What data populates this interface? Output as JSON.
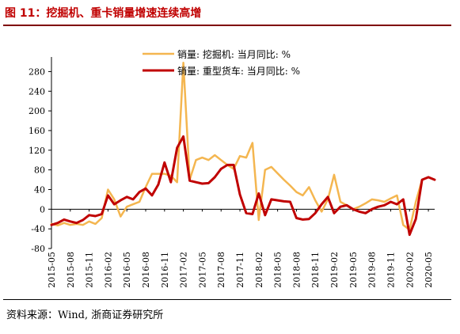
{
  "header": {
    "title": "图 11：挖掘机、重卡销量增速连续高增"
  },
  "footer": {
    "source": "资料来源：Wind, 浙商证券研究所"
  },
  "chart_data": {
    "type": "line",
    "title": "",
    "xlabel": "",
    "ylabel": "",
    "ylim": [
      -80,
      300
    ],
    "yticks": [
      -80,
      -40,
      0,
      40,
      80,
      120,
      160,
      200,
      240,
      280
    ],
    "grid": false,
    "legend_position": "top-center",
    "x": [
      "2015-05",
      "2015-06",
      "2015-07",
      "2015-08",
      "2015-09",
      "2015-10",
      "2015-11",
      "2015-12",
      "2016-01",
      "2016-02",
      "2016-03",
      "2016-04",
      "2016-05",
      "2016-06",
      "2016-07",
      "2016-08",
      "2016-09",
      "2016-10",
      "2016-11",
      "2016-12",
      "2017-01",
      "2017-02",
      "2017-03",
      "2017-04",
      "2017-05",
      "2017-06",
      "2017-07",
      "2017-08",
      "2017-09",
      "2017-10",
      "2017-11",
      "2017-12",
      "2018-01",
      "2018-02",
      "2018-03",
      "2018-04",
      "2018-05",
      "2018-06",
      "2018-07",
      "2018-08",
      "2018-09",
      "2018-10",
      "2018-11",
      "2018-12",
      "2019-01",
      "2019-02",
      "2019-03",
      "2019-04",
      "2019-05",
      "2019-06",
      "2019-07",
      "2019-08",
      "2019-09",
      "2019-10",
      "2019-11",
      "2019-12",
      "2020-01",
      "2020-02",
      "2020-03",
      "2020-04",
      "2020-05",
      "2020-06"
    ],
    "tick_labels": [
      "2015-05",
      "2015-08",
      "2015-11",
      "2016-02",
      "2016-05",
      "2016-08",
      "2016-11",
      "2017-02",
      "2017-05",
      "2017-08",
      "2017-11",
      "2018-02",
      "2018-05",
      "2018-08",
      "2018-11",
      "2019-02",
      "2019-05",
      "2019-08",
      "2019-11",
      "2020-02",
      "2020-05"
    ],
    "series": [
      {
        "name": "销量: 挖掘机: 当月同比: %",
        "color": "#f4b650",
        "values": [
          -30,
          -33,
          -28,
          -32,
          -30,
          -32,
          -25,
          -30,
          -18,
          40,
          20,
          -15,
          5,
          10,
          15,
          45,
          72,
          72,
          72,
          68,
          55,
          298,
          60,
          100,
          105,
          100,
          110,
          100,
          90,
          82,
          108,
          105,
          135,
          -22,
          80,
          86,
          73,
          60,
          48,
          35,
          28,
          45,
          18,
          -5,
          20,
          70,
          15,
          8,
          0,
          5,
          12,
          20,
          18,
          15,
          22,
          28,
          -32,
          -42,
          15,
          60,
          65,
          60
        ]
      },
      {
        "name": "销量: 重型货车: 当月同比: %",
        "color": "#c00000",
        "values": [
          -32,
          -28,
          -21,
          -25,
          -28,
          -22,
          -12,
          -14,
          -10,
          28,
          10,
          18,
          25,
          20,
          35,
          42,
          28,
          50,
          95,
          55,
          125,
          148,
          58,
          55,
          52,
          53,
          65,
          82,
          90,
          90,
          30,
          -8,
          -10,
          32,
          -12,
          20,
          18,
          16,
          15,
          -18,
          -21,
          -20,
          -8,
          10,
          25,
          -8,
          5,
          8,
          0,
          -5,
          -8,
          0,
          5,
          8,
          15,
          10,
          20,
          -52,
          -20,
          60,
          65,
          60
        ]
      }
    ]
  }
}
